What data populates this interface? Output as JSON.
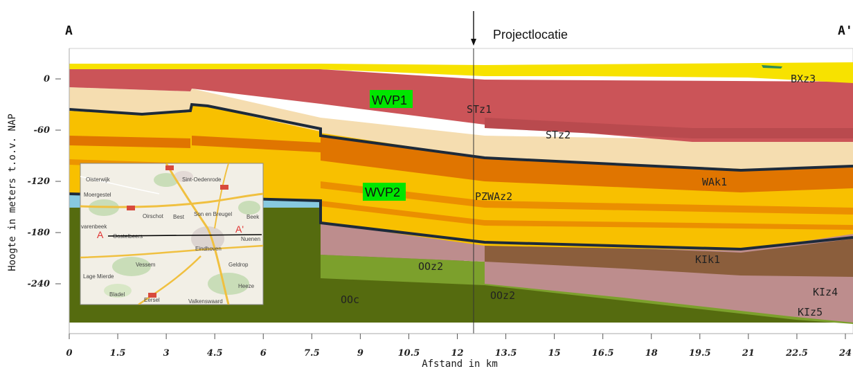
{
  "section": {
    "left_end_label": "A",
    "right_end_label": "A'",
    "project_label": "Projectlocatie"
  },
  "axes": {
    "y_label": "Hoogte in meters t.o.v. NAP",
    "x_label": "Afstand in km",
    "y_ticks": [
      "0",
      "-60",
      "-120",
      "-180",
      "-240"
    ],
    "x_ticks": [
      "0",
      "1.5",
      "3",
      "4.5",
      "6",
      "7.5",
      "9",
      "10.5",
      "12",
      "13.5",
      "15",
      "16.5",
      "18",
      "19.5",
      "21",
      "22.5",
      "24"
    ]
  },
  "units": {
    "bxz3": "BXz3",
    "stz1": "STz1",
    "stz2": "STz2",
    "wak1": "WAk1",
    "pzwaz2": "PZWAz2",
    "kik1": "KIk1",
    "kiz4": "KIz4",
    "kiz5": "KIz5",
    "ooz2_a": "OOz2",
    "ooz2_b": "OOz2",
    "ooc": "OOc"
  },
  "aquifers": {
    "wvp1": "WVP1",
    "wvp2": "WVP2",
    "highlight_color": "#00e600"
  },
  "inset_map": {
    "places": {
      "oisterwijk": "Oisterwijk",
      "sint_oedenrode": "Sint-Oedenrode",
      "moergestel": "Moergestel",
      "son_en_breugel": "Son en Breugel",
      "oirschot": "Oirschot",
      "best": "Best",
      "beek": "Beek",
      "oostelbeers": "Oostelbeers",
      "eindhoven": "Eindhoven",
      "nuenen": "Nuenen",
      "vessem": "Vessem",
      "geldrop": "Geldrop",
      "lage_mierde": "Lage Mierde",
      "heeze": "Heeze",
      "bladel": "Bladel",
      "eersel": "Eersel",
      "valkenswaard": "Valkenswaard",
      "hilvarenbeek": "varenbeek"
    },
    "section_start": "A",
    "section_end": "A'"
  }
}
